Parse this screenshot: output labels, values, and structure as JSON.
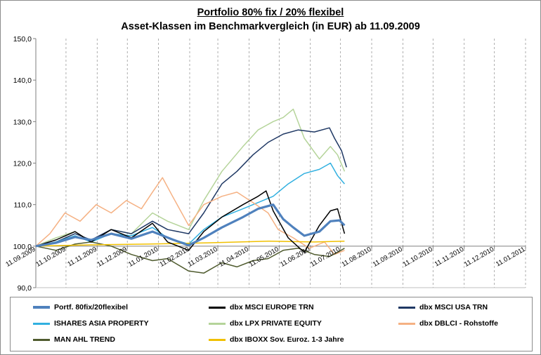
{
  "chart_data": {
    "type": "line",
    "title": "Portfolio 80% fix / 20% flexibel",
    "subtitle": "Asset-Klassen im Benchmarkvergleich (in EUR) ab 11.09.2009",
    "xlabel": "",
    "ylabel": "",
    "ylim": [
      90,
      150
    ],
    "yticks": [
      "90,0",
      "100,0",
      "110,0",
      "120,0",
      "130,0",
      "140,0",
      "150,0"
    ],
    "xlim": [
      "2009-09-11",
      "2011-01-11"
    ],
    "xticks": [
      "11.09.2009",
      "11.10.2009",
      "11.11.2009",
      "11.12.2009",
      "11.01.2010",
      "11.02.2010",
      "11.03.2010",
      "11.04.2010",
      "11.05.2010",
      "11.06.2010",
      "11.07.2010",
      "11.08.2010",
      "11.09.2010",
      "11.10.2010",
      "11.11.2010",
      "11.12.2010",
      "11.01.2011"
    ],
    "grid": "vertical dashed",
    "legend_position": "bottom",
    "series": [
      {
        "name": "Portf. 80fix/20flexibel",
        "color": "#4f81bd",
        "width": 3.2,
        "points": [
          [
            "2009-09-11",
            100
          ],
          [
            "2009-10-01",
            100.8
          ],
          [
            "2009-10-20",
            102.2
          ],
          [
            "2009-11-05",
            101.5
          ],
          [
            "2009-11-25",
            103
          ],
          [
            "2009-12-15",
            101.8
          ],
          [
            "2010-01-05",
            103.5
          ],
          [
            "2010-01-25",
            101.6
          ],
          [
            "2010-02-10",
            100.2
          ],
          [
            "2010-02-25",
            102
          ],
          [
            "2010-03-15",
            104.5
          ],
          [
            "2010-04-05",
            107
          ],
          [
            "2010-04-20",
            109
          ],
          [
            "2010-05-05",
            110
          ],
          [
            "2010-05-15",
            106.5
          ],
          [
            "2010-05-25",
            104.5
          ],
          [
            "2010-06-05",
            102.5
          ],
          [
            "2010-06-20",
            103.5
          ],
          [
            "2010-07-01",
            106
          ],
          [
            "2010-07-10",
            106.2
          ],
          [
            "2010-07-15",
            105
          ]
        ]
      },
      {
        "name": "dbx MSCI EUROPE TRN",
        "color": "#000000",
        "width": 1.5,
        "points": [
          [
            "2009-09-11",
            100
          ],
          [
            "2009-10-01",
            101.5
          ],
          [
            "2009-10-20",
            103.5
          ],
          [
            "2009-11-05",
            101
          ],
          [
            "2009-11-25",
            104
          ],
          [
            "2009-12-15",
            102
          ],
          [
            "2010-01-05",
            105.5
          ],
          [
            "2010-01-20",
            101
          ],
          [
            "2010-02-10",
            99
          ],
          [
            "2010-02-25",
            103.5
          ],
          [
            "2010-03-15",
            107
          ],
          [
            "2010-04-05",
            110
          ],
          [
            "2010-04-20",
            112
          ],
          [
            "2010-04-28",
            113.3
          ],
          [
            "2010-05-05",
            108.5
          ],
          [
            "2010-05-20",
            102
          ],
          [
            "2010-06-05",
            98.5
          ],
          [
            "2010-06-20",
            105
          ],
          [
            "2010-07-01",
            108.5
          ],
          [
            "2010-07-08",
            109
          ],
          [
            "2010-07-15",
            103
          ]
        ]
      },
      {
        "name": "dbx MSCI USA TRN",
        "color": "#1f3864",
        "width": 1.5,
        "points": [
          [
            "2009-09-11",
            100
          ],
          [
            "2009-10-01",
            101
          ],
          [
            "2009-10-20",
            103
          ],
          [
            "2009-11-05",
            101.5
          ],
          [
            "2009-11-25",
            104
          ],
          [
            "2009-12-15",
            103
          ],
          [
            "2010-01-05",
            106
          ],
          [
            "2010-01-20",
            104
          ],
          [
            "2010-02-10",
            103
          ],
          [
            "2010-02-25",
            108
          ],
          [
            "2010-03-15",
            115
          ],
          [
            "2010-03-30",
            118
          ],
          [
            "2010-04-15",
            122
          ],
          [
            "2010-04-30",
            125
          ],
          [
            "2010-05-15",
            127
          ],
          [
            "2010-05-30",
            128
          ],
          [
            "2010-06-15",
            127.5
          ],
          [
            "2010-06-30",
            128.5
          ],
          [
            "2010-07-05",
            126
          ],
          [
            "2010-07-12",
            123
          ],
          [
            "2010-07-17",
            119
          ]
        ]
      },
      {
        "name": "ISHARES ASIA PROPERTY",
        "color": "#31b0e0",
        "width": 1.5,
        "points": [
          [
            "2009-09-11",
            100
          ],
          [
            "2009-10-01",
            101
          ],
          [
            "2009-10-20",
            102.5
          ],
          [
            "2009-11-05",
            101
          ],
          [
            "2009-11-25",
            103
          ],
          [
            "2009-12-15",
            102.5
          ],
          [
            "2010-01-05",
            104.5
          ],
          [
            "2010-01-20",
            102
          ],
          [
            "2010-02-10",
            100.5
          ],
          [
            "2010-02-25",
            104
          ],
          [
            "2010-03-15",
            107
          ],
          [
            "2010-04-05",
            109
          ],
          [
            "2010-04-20",
            110.5
          ],
          [
            "2010-05-05",
            112
          ],
          [
            "2010-05-20",
            115
          ],
          [
            "2010-06-05",
            117.5
          ],
          [
            "2010-06-20",
            118.5
          ],
          [
            "2010-07-01",
            120
          ],
          [
            "2010-07-08",
            117
          ],
          [
            "2010-07-15",
            115
          ]
        ]
      },
      {
        "name": "dbx LPX PRIVATE EQUITY",
        "color": "#b5d49a",
        "width": 1.5,
        "points": [
          [
            "2009-09-11",
            100
          ],
          [
            "2009-10-01",
            102
          ],
          [
            "2009-10-20",
            103.5
          ],
          [
            "2009-11-05",
            101
          ],
          [
            "2009-11-25",
            104
          ],
          [
            "2009-12-15",
            103
          ],
          [
            "2010-01-05",
            108
          ],
          [
            "2010-01-20",
            106
          ],
          [
            "2010-02-10",
            104
          ],
          [
            "2010-02-25",
            111
          ],
          [
            "2010-03-15",
            118
          ],
          [
            "2010-04-05",
            124
          ],
          [
            "2010-04-20",
            128
          ],
          [
            "2010-05-05",
            130
          ],
          [
            "2010-05-15",
            131
          ],
          [
            "2010-05-25",
            133
          ],
          [
            "2010-06-05",
            126
          ],
          [
            "2010-06-20",
            121
          ],
          [
            "2010-07-01",
            124
          ],
          [
            "2010-07-08",
            122
          ],
          [
            "2010-07-15",
            118
          ]
        ]
      },
      {
        "name": "dbx DBLCI - Rohstoffe",
        "color": "#f5b183",
        "width": 1.5,
        "points": [
          [
            "2009-09-11",
            100
          ],
          [
            "2009-09-25",
            103
          ],
          [
            "2009-10-10",
            108
          ],
          [
            "2009-10-25",
            106
          ],
          [
            "2009-11-10",
            110
          ],
          [
            "2009-11-25",
            108
          ],
          [
            "2009-12-10",
            111
          ],
          [
            "2009-12-25",
            109
          ],
          [
            "2010-01-05",
            113
          ],
          [
            "2010-01-15",
            116.5
          ],
          [
            "2010-01-25",
            112
          ],
          [
            "2010-02-10",
            105
          ],
          [
            "2010-02-25",
            110
          ],
          [
            "2010-03-15",
            112
          ],
          [
            "2010-03-30",
            113
          ],
          [
            "2010-04-15",
            110.5
          ],
          [
            "2010-04-30",
            108
          ],
          [
            "2010-05-10",
            104
          ],
          [
            "2010-05-25",
            102
          ],
          [
            "2010-06-10",
            99.5
          ],
          [
            "2010-06-25",
            101
          ],
          [
            "2010-07-05",
            98
          ],
          [
            "2010-07-15",
            99
          ]
        ]
      },
      {
        "name": "MAN AHL TREND",
        "color": "#4f5b2e",
        "width": 1.5,
        "points": [
          [
            "2009-09-11",
            100
          ],
          [
            "2009-10-01",
            99
          ],
          [
            "2009-10-20",
            100.5
          ],
          [
            "2009-11-05",
            101
          ],
          [
            "2009-11-25",
            100
          ],
          [
            "2009-12-15",
            98
          ],
          [
            "2010-01-05",
            96.5
          ],
          [
            "2010-01-20",
            97
          ],
          [
            "2010-02-10",
            94
          ],
          [
            "2010-02-25",
            93.5
          ],
          [
            "2010-03-15",
            96
          ],
          [
            "2010-03-30",
            95
          ],
          [
            "2010-04-15",
            96.5
          ],
          [
            "2010-04-30",
            97
          ],
          [
            "2010-05-15",
            99
          ],
          [
            "2010-05-30",
            99.5
          ],
          [
            "2010-06-15",
            98
          ],
          [
            "2010-06-30",
            97.5
          ],
          [
            "2010-07-08",
            98.5
          ],
          [
            "2010-07-15",
            99.5
          ]
        ]
      },
      {
        "name": "dbx IBOXX Sov. Euroz. 1-3 Jahre",
        "color": "#f0c000",
        "width": 1.5,
        "points": [
          [
            "2009-09-11",
            100
          ],
          [
            "2009-11-01",
            100.3
          ],
          [
            "2010-01-01",
            100.5
          ],
          [
            "2010-03-01",
            100.8
          ],
          [
            "2010-05-01",
            101.2
          ],
          [
            "2010-06-15",
            101
          ],
          [
            "2010-07-15",
            101.2
          ]
        ]
      }
    ]
  },
  "legend": {
    "items": [
      {
        "label": "Portf. 80fix/20flexibel",
        "color": "#4f81bd"
      },
      {
        "label": "dbx MSCI EUROPE TRN",
        "color": "#000000"
      },
      {
        "label": "dbx MSCI USA TRN",
        "color": "#1f3864"
      },
      {
        "label": "ISHARES ASIA PROPERTY",
        "color": "#31b0e0"
      },
      {
        "label": "dbx LPX PRIVATE EQUITY",
        "color": "#b5d49a"
      },
      {
        "label": "dbx DBLCI - Rohstoffe",
        "color": "#f5b183"
      },
      {
        "label": "MAN AHL TREND",
        "color": "#4f5b2e"
      },
      {
        "label": "dbx IBOXX Sov. Euroz. 1-3 Jahre",
        "color": "#f0c000"
      }
    ]
  }
}
